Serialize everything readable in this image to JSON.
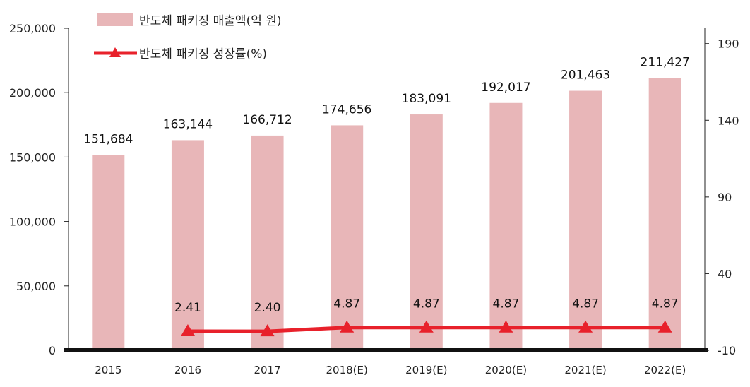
{
  "chart_data": {
    "type": "bar",
    "categories": [
      "2015",
      "2016",
      "2017",
      "2018(E)",
      "2019(E)",
      "2020(E)",
      "2021(E)",
      "2022(E)"
    ],
    "series": [
      {
        "name": "반도체 패키징 매출액(억 원)",
        "type": "bar",
        "axis": "left",
        "values": [
          151684,
          163144,
          166712,
          174656,
          183091,
          192017,
          201463,
          211427
        ],
        "labels": [
          "151,684",
          "163,144",
          "166,712",
          "174,656",
          "183,091",
          "192,017",
          "201,463",
          "211,427"
        ]
      },
      {
        "name": "반도체 패키징 성장률(%)",
        "type": "line",
        "axis": "right",
        "values": [
          null,
          2.41,
          2.4,
          4.87,
          4.87,
          4.87,
          4.87,
          4.87
        ],
        "labels": [
          "",
          "2.41",
          "2.40",
          "4.87",
          "4.87",
          "4.87",
          "4.87",
          "4.87"
        ]
      }
    ],
    "y_left": {
      "lim": [
        0,
        250000
      ],
      "ticks": [
        0,
        50000,
        100000,
        150000,
        200000,
        250000
      ],
      "tick_labels": [
        "0",
        "50,000",
        "100,000",
        "150,000",
        "200,000",
        "250,000"
      ]
    },
    "y_right": {
      "lim": [
        -10,
        200
      ],
      "ticks": [
        -10,
        40,
        90,
        140,
        190
      ],
      "tick_labels": [
        "-10",
        "40",
        "90",
        "140",
        "190"
      ]
    },
    "legend_position": "top-left",
    "colors": {
      "bar": "#e8b6b8",
      "line": "#e8212b",
      "axis": "#222222"
    }
  }
}
